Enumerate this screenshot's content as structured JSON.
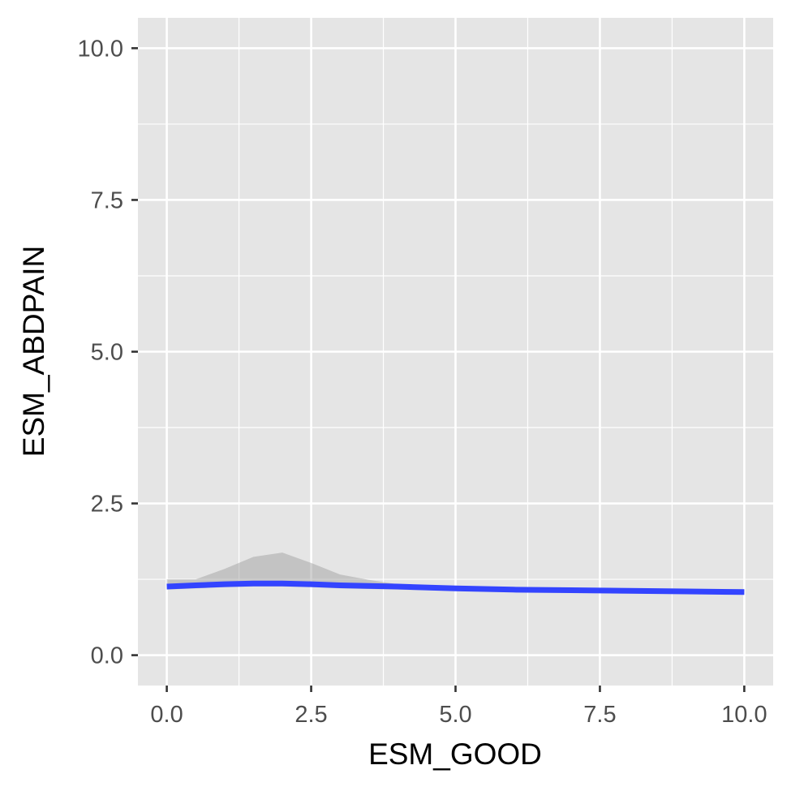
{
  "chart_data": {
    "type": "line",
    "title": "",
    "xlabel": "ESM_GOOD",
    "ylabel": "ESM_ABDPAIN",
    "xlim": [
      -0.5,
      10.5
    ],
    "ylim": [
      -0.5,
      10.5
    ],
    "x_ticks": [
      0,
      2.5,
      5,
      7.5,
      10
    ],
    "x_tick_labels": [
      "0.0",
      "2.5",
      "5.0",
      "7.5",
      "10.0"
    ],
    "y_ticks": [
      0,
      2.5,
      5,
      7.5,
      10
    ],
    "y_tick_labels": [
      "0.0",
      "2.5",
      "5.0",
      "7.5",
      "10.0"
    ],
    "grid": true,
    "panel_background": "#e5e5e5",
    "grid_color": "#ffffff",
    "series": [
      {
        "type": "smooth",
        "color": "#3344ff",
        "x": [
          0,
          0.5,
          1,
          1.5,
          2,
          2.5,
          3,
          3.5,
          4,
          5,
          6,
          7,
          8,
          9,
          10
        ],
        "y": [
          1.13,
          1.15,
          1.17,
          1.18,
          1.18,
          1.17,
          1.15,
          1.14,
          1.13,
          1.1,
          1.08,
          1.07,
          1.06,
          1.05,
          1.04
        ],
        "ymin": [
          1.08,
          1.1,
          1.12,
          1.13,
          1.13,
          1.12,
          1.1,
          1.09,
          1.08,
          1.06,
          1.05,
          1.04,
          1.03,
          1.02,
          1.01
        ],
        "ymax": [
          1.25,
          1.25,
          1.42,
          1.62,
          1.69,
          1.52,
          1.33,
          1.24,
          1.17,
          1.13,
          1.11,
          1.1,
          1.09,
          1.08,
          1.07
        ]
      }
    ]
  }
}
